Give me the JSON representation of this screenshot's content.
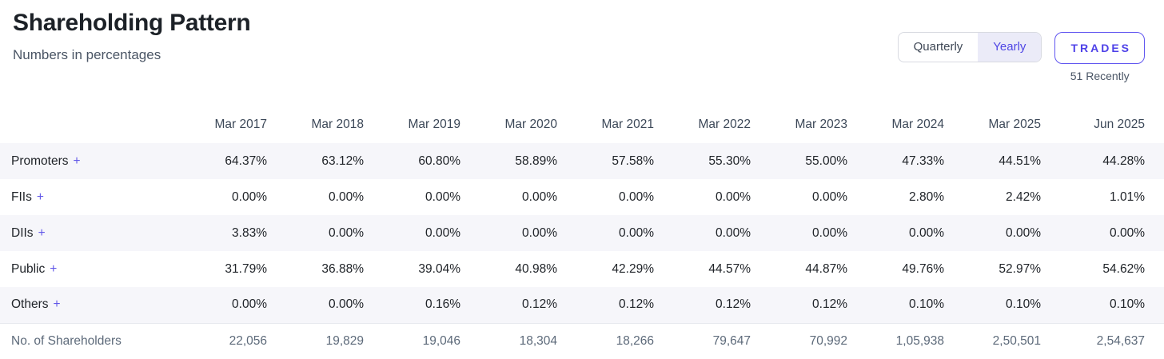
{
  "page": {
    "title": "Shareholding Pattern",
    "subtitle": "Numbers in percentages"
  },
  "controls": {
    "toggle_options": [
      {
        "label": "Quarterly",
        "active": false
      },
      {
        "label": "Yearly",
        "active": true
      }
    ],
    "trades_button": "TRADES",
    "trades_caption": "51 Recently"
  },
  "table": {
    "columns": [
      "Mar 2017",
      "Mar 2018",
      "Mar 2019",
      "Mar 2020",
      "Mar 2021",
      "Mar 2022",
      "Mar 2023",
      "Mar 2024",
      "Mar 2025",
      "Jun 2025"
    ],
    "rows": [
      {
        "label": "Promoters",
        "expand": "+",
        "values": [
          "64.37%",
          "63.12%",
          "60.80%",
          "58.89%",
          "57.58%",
          "55.30%",
          "55.00%",
          "47.33%",
          "44.51%",
          "44.28%"
        ]
      },
      {
        "label": "FIIs",
        "expand": "+",
        "values": [
          "0.00%",
          "0.00%",
          "0.00%",
          "0.00%",
          "0.00%",
          "0.00%",
          "0.00%",
          "2.80%",
          "2.42%",
          "1.01%"
        ]
      },
      {
        "label": "DIIs",
        "expand": "+",
        "values": [
          "3.83%",
          "0.00%",
          "0.00%",
          "0.00%",
          "0.00%",
          "0.00%",
          "0.00%",
          "0.00%",
          "0.00%",
          "0.00%"
        ]
      },
      {
        "label": "Public",
        "expand": "+",
        "values": [
          "31.79%",
          "36.88%",
          "39.04%",
          "40.98%",
          "42.29%",
          "44.57%",
          "44.87%",
          "49.76%",
          "52.97%",
          "54.62%"
        ]
      },
      {
        "label": "Others",
        "expand": "+",
        "values": [
          "0.00%",
          "0.00%",
          "0.16%",
          "0.12%",
          "0.12%",
          "0.12%",
          "0.12%",
          "0.10%",
          "0.10%",
          "0.10%"
        ]
      }
    ],
    "footer_row": {
      "label": "No. of Shareholders",
      "values": [
        "22,056",
        "19,829",
        "19,046",
        "18,304",
        "18,266",
        "79,647",
        "70,992",
        "1,05,938",
        "2,50,501",
        "2,54,637"
      ]
    }
  },
  "colors": {
    "accent_purple": "#4f46e5",
    "active_toggle_bg": "#ebebf8",
    "stripe_bg": "#f6f6fa",
    "muted_text": "#5d6a7a"
  }
}
